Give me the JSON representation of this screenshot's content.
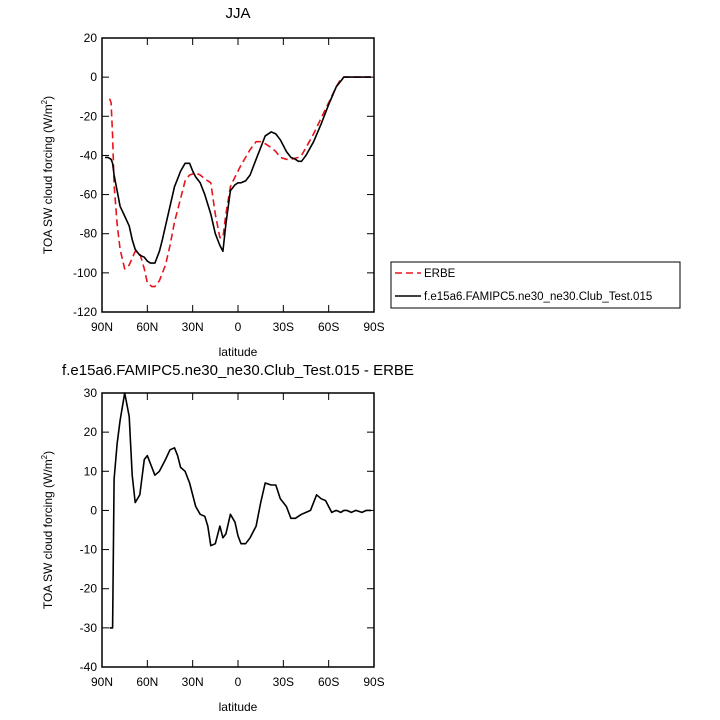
{
  "charts": [
    {
      "id": "top",
      "title": "JJA",
      "xlabel": "latitude",
      "ylabel_main": "TOA SW cloud forcing (W/m",
      "ylabel_sup": "2",
      "ylabel_end": ")",
      "ylim": [
        -120,
        20
      ],
      "yticks": [
        20,
        0,
        -20,
        -40,
        -60,
        -80,
        -100,
        -120
      ],
      "xticks": [
        {
          "v": 90,
          "label": "90N"
        },
        {
          "v": 60,
          "label": "60N"
        },
        {
          "v": 30,
          "label": "30N"
        },
        {
          "v": 0,
          "label": "0"
        },
        {
          "v": -30,
          "label": "30S"
        },
        {
          "v": -60,
          "label": "60S"
        },
        {
          "v": -90,
          "label": "90S"
        }
      ],
      "legend": [
        {
          "label": "ERBE",
          "color": "#e8141b",
          "dash": "7,4"
        },
        {
          "label": "f.e15a6.FAMIPC5.ne30_ne30.Club_Test.015",
          "color": "#000000",
          "dash": ""
        }
      ]
    },
    {
      "id": "bottom",
      "title": "f.e15a6.FAMIPC5.ne30_ne30.Club_Test.015 - ERBE",
      "xlabel": "latitude",
      "ylabel_main": "TOA SW cloud forcing (W/m",
      "ylabel_sup": "2",
      "ylabel_end": ")",
      "ylim": [
        -40,
        30
      ],
      "yticks": [
        30,
        20,
        10,
        0,
        -10,
        -20,
        -30,
        -40
      ],
      "xticks": [
        {
          "v": 90,
          "label": "90N"
        },
        {
          "v": 60,
          "label": "60N"
        },
        {
          "v": 30,
          "label": "30N"
        },
        {
          "v": 0,
          "label": "0"
        },
        {
          "v": -30,
          "label": "30S"
        },
        {
          "v": -60,
          "label": "60S"
        },
        {
          "v": -90,
          "label": "90S"
        }
      ]
    }
  ],
  "chart_data": [
    {
      "type": "line",
      "title": "JJA",
      "xlabel": "latitude",
      "ylabel": "TOA SW cloud forcing (W/m2)",
      "xlim": [
        90,
        -90
      ],
      "ylim": [
        -120,
        20
      ],
      "grid": false,
      "legend_position": "right",
      "series": [
        {
          "name": "ERBE",
          "color": "#e8141b",
          "style": "dashed",
          "x": [
            85,
            84,
            83,
            82,
            80,
            78,
            75,
            72,
            68,
            65,
            62,
            60,
            57,
            55,
            52,
            48,
            45,
            42,
            38,
            35,
            32,
            28,
            25,
            22,
            18,
            15,
            12,
            10,
            8,
            5,
            2,
            0,
            -2,
            -5,
            -8,
            -12,
            -15,
            -18,
            -22,
            -25,
            -28,
            -32,
            -35,
            -40,
            -42,
            -45,
            -50,
            -55,
            -60,
            -65,
            -68,
            -70,
            -75,
            -80,
            -85,
            -88
          ],
          "y": [
            -11,
            -13,
            -30,
            -55,
            -75,
            -88,
            -98,
            -96,
            -89,
            -90,
            -98,
            -105,
            -107,
            -107,
            -104,
            -96,
            -86,
            -74,
            -62,
            -53,
            -50,
            -49,
            -50,
            -52,
            -54,
            -70,
            -82,
            -82,
            -70,
            -56,
            -51,
            -48,
            -45,
            -41,
            -37,
            -33,
            -33,
            -34,
            -36,
            -38,
            -41,
            -42,
            -42,
            -41,
            -40,
            -36,
            -29,
            -21,
            -13,
            -5,
            -1,
            0,
            0,
            0,
            0,
            0
          ]
        },
        {
          "name": "f.e15a6.FAMIPC5.ne30_ne30.Club_Test.015",
          "color": "#000000",
          "style": "solid",
          "x": [
            88,
            86,
            84,
            83,
            82,
            80,
            78,
            75,
            72,
            70,
            68,
            65,
            62,
            60,
            58,
            55,
            52,
            50,
            48,
            45,
            42,
            40,
            38,
            35,
            32,
            30,
            28,
            25,
            22,
            18,
            15,
            12,
            10,
            8,
            5,
            2,
            0,
            -2,
            -5,
            -8,
            -12,
            -15,
            -18,
            -22,
            -25,
            -28,
            -32,
            -35,
            -38,
            -40,
            -42,
            -45,
            -50,
            -55,
            -60,
            -65,
            -68,
            -70,
            -75,
            -80,
            -85,
            -88
          ],
          "y": [
            -41,
            -41,
            -42,
            -44,
            -50,
            -58,
            -66,
            -71,
            -76,
            -83,
            -88,
            -91,
            -92,
            -94,
            -95,
            -95,
            -89,
            -83,
            -76,
            -66,
            -56,
            -52,
            -48,
            -44,
            -44,
            -48,
            -51,
            -54,
            -60,
            -70,
            -80,
            -86,
            -89,
            -75,
            -58,
            -55,
            -54,
            -54,
            -53,
            -50,
            -42,
            -36,
            -30,
            -28,
            -29,
            -32,
            -38,
            -41,
            -42,
            -43,
            -43,
            -40,
            -33,
            -24,
            -14,
            -5,
            -2,
            0,
            0,
            0,
            0,
            0
          ]
        }
      ]
    },
    {
      "type": "line",
      "title": "f.e15a6.FAMIPC5.ne30_ne30.Club_Test.015 - ERBE",
      "xlabel": "latitude",
      "ylabel": "TOA SW cloud forcing (W/m2)",
      "xlim": [
        90,
        -90
      ],
      "ylim": [
        -40,
        30
      ],
      "grid": false,
      "series": [
        {
          "name": "",
          "color": "#000000",
          "style": "solid",
          "x": [
            85,
            83,
            82,
            80,
            78,
            75,
            72,
            70,
            68,
            65,
            62,
            60,
            57,
            55,
            52,
            48,
            45,
            42,
            40,
            38,
            35,
            32,
            28,
            25,
            22,
            20,
            18,
            15,
            12,
            10,
            8,
            5,
            2,
            0,
            -2,
            -5,
            -8,
            -12,
            -15,
            -18,
            -22,
            -25,
            -28,
            -32,
            -35,
            -38,
            -40,
            -42,
            -45,
            -48,
            -52,
            -55,
            -58,
            -62,
            -65,
            -68,
            -70,
            -72,
            -75,
            -78,
            -82,
            -85,
            -88
          ],
          "y": [
            -30,
            -30,
            8,
            17,
            23,
            30,
            24,
            9,
            2,
            4,
            13,
            14,
            11,
            9,
            10,
            13,
            15.5,
            16,
            14,
            11,
            10,
            7,
            1,
            -1,
            -1.5,
            -4,
            -9,
            -8.5,
            -4,
            -7,
            -6,
            -1,
            -3,
            -6.5,
            -8.5,
            -8.5,
            -7,
            -4,
            2,
            7,
            6.5,
            6.5,
            3,
            1,
            -2,
            -2,
            -1.5,
            -1,
            -0.5,
            0,
            4,
            3,
            2.5,
            -0.5,
            0,
            -0.5,
            0,
            0,
            -0.5,
            0,
            -0.5,
            0,
            0
          ]
        }
      ]
    }
  ]
}
